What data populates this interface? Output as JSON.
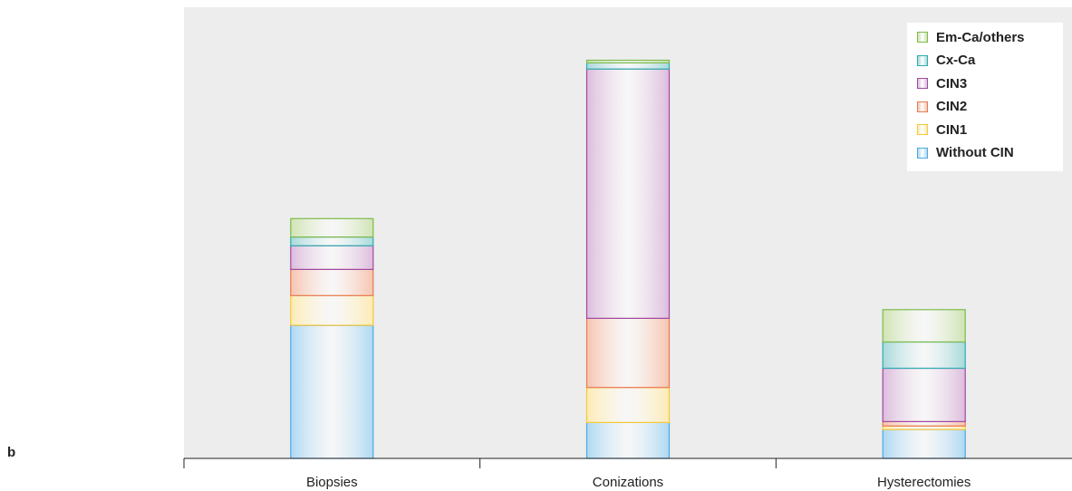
{
  "panel_label": "b",
  "chart_data": {
    "type": "bar",
    "stacked": true,
    "categories": [
      "Biopsies",
      "Conizations",
      "Hysterectomies"
    ],
    "series": [
      {
        "name": "Without CIN",
        "color": "#4da9e0",
        "fill": "#aed8f2",
        "values": [
          152,
          41,
          33
        ]
      },
      {
        "name": "CIN1",
        "color": "#f5c93a",
        "fill": "#fdebb4",
        "values": [
          34,
          40,
          4
        ]
      },
      {
        "name": "CIN2",
        "color": "#e87a55",
        "fill": "#f6c4ae",
        "values": [
          30,
          79,
          5
        ]
      },
      {
        "name": "CIN3",
        "color": "#a248a1",
        "fill": "#dcbcdc",
        "values": [
          27,
          285,
          61
        ]
      },
      {
        "name": "Cx-Ca",
        "color": "#2eadb0",
        "fill": "#a7d9da",
        "values": [
          10,
          7,
          30
        ]
      },
      {
        "name": "Em-Ca/others",
        "color": "#7dbb4b",
        "fill": "#cfe3b3",
        "values": [
          21,
          3,
          37
        ]
      }
    ],
    "legend_order": [
      "Em-Ca/others",
      "Cx-Ca",
      "CIN3",
      "CIN2",
      "CIN1",
      "Without CIN"
    ],
    "legend_position": "top-right",
    "ylim": [
      0,
      500
    ],
    "grid": false,
    "title": "",
    "xlabel": "",
    "ylabel": ""
  }
}
